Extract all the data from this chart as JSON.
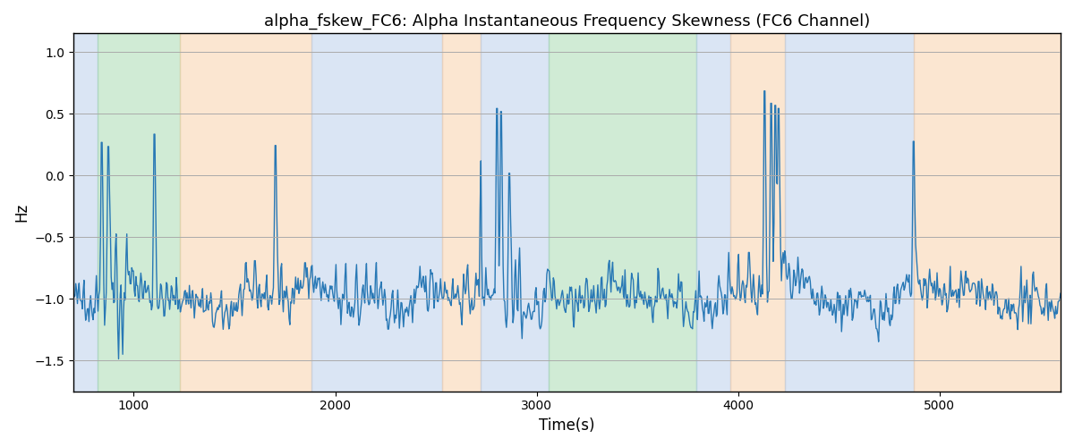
{
  "title": "alpha_fskew_FC6: Alpha Instantaneous Frequency Skewness (FC6 Channel)",
  "xlabel": "Time(s)",
  "ylabel": "Hz",
  "xlim": [
    700,
    5600
  ],
  "ylim": [
    -1.75,
    1.15
  ],
  "line_color": "#2878b5",
  "line_width": 1.0,
  "bg_color": "#ffffff",
  "grid_color": "#aaaaaa",
  "regions": [
    {
      "start": 700,
      "end": 820,
      "color": "#aec6e8",
      "alpha": 0.45
    },
    {
      "start": 820,
      "end": 1230,
      "color": "#98d4a3",
      "alpha": 0.45
    },
    {
      "start": 1230,
      "end": 1880,
      "color": "#f7c89b",
      "alpha": 0.45
    },
    {
      "start": 1880,
      "end": 2530,
      "color": "#aec6e8",
      "alpha": 0.45
    },
    {
      "start": 2530,
      "end": 2720,
      "color": "#f7c89b",
      "alpha": 0.45
    },
    {
      "start": 2720,
      "end": 3060,
      "color": "#aec6e8",
      "alpha": 0.45
    },
    {
      "start": 3060,
      "end": 3790,
      "color": "#98d4a3",
      "alpha": 0.45
    },
    {
      "start": 3790,
      "end": 3960,
      "color": "#aec6e8",
      "alpha": 0.45
    },
    {
      "start": 3960,
      "end": 4230,
      "color": "#f7c89b",
      "alpha": 0.45
    },
    {
      "start": 4230,
      "end": 4870,
      "color": "#aec6e8",
      "alpha": 0.45
    },
    {
      "start": 4870,
      "end": 5600,
      "color": "#f7c89b",
      "alpha": 0.45
    }
  ],
  "seed": 42,
  "t_start": 700,
  "t_end": 5600,
  "n_points": 1200
}
